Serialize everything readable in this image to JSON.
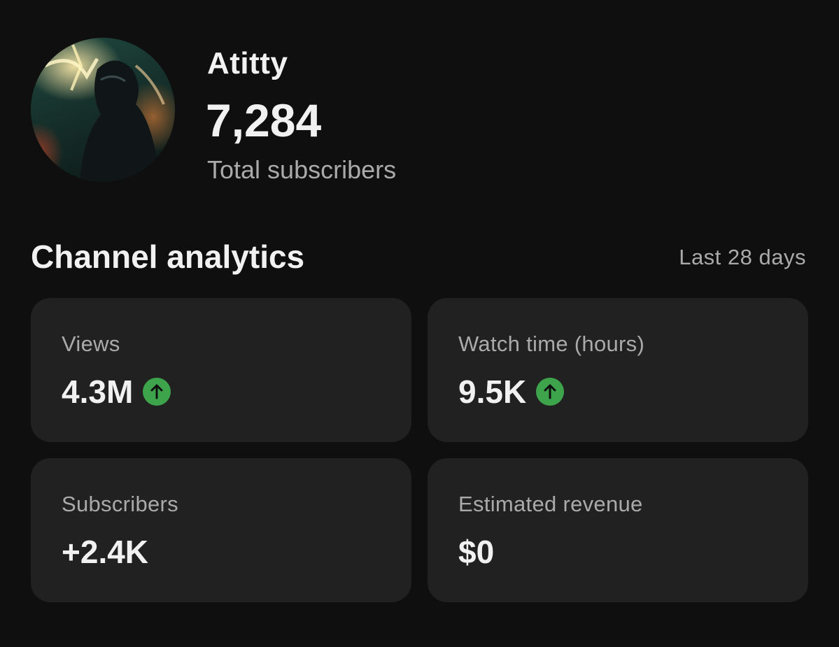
{
  "channel": {
    "name": "Atitty",
    "subscriber_count": "7,284",
    "subscriber_label": "Total subscribers"
  },
  "analytics": {
    "title": "Channel analytics",
    "period": "Last 28 days",
    "cards": [
      {
        "label": "Views",
        "value": "4.3M",
        "trend_icon": "arrow-up-icon",
        "trend_color": "#3ea44b"
      },
      {
        "label": "Watch time (hours)",
        "value": "9.5K",
        "trend_icon": "arrow-up-icon",
        "trend_color": "#3ea44b"
      },
      {
        "label": "Subscribers",
        "value": "+2.4K"
      },
      {
        "label": "Estimated revenue",
        "value": "$0"
      }
    ]
  },
  "colors": {
    "background": "#0f0f0f",
    "card": "#212121",
    "text_primary": "#f1f1f1",
    "text_secondary": "#aaaaaa",
    "trend_up": "#3ea44b"
  }
}
